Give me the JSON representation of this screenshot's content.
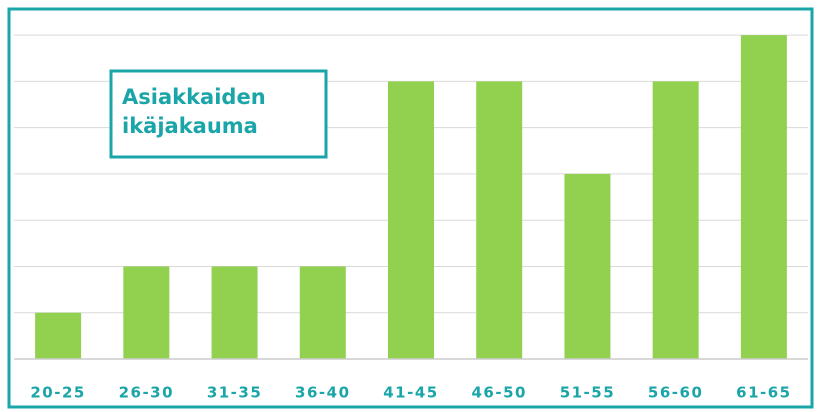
{
  "chart_data": {
    "type": "bar",
    "title": "Asiakkaiden ikäjakauma",
    "categories": [
      "20-25",
      "26-30",
      "31-35",
      "36-40",
      "41-45",
      "46-50",
      "51-55",
      "56-60",
      "61-65"
    ],
    "values": [
      1,
      2,
      2,
      2,
      6,
      6,
      4,
      6,
      7
    ],
    "color": "#92d050",
    "ylim": [
      0,
      7.5
    ],
    "yticks": [
      1,
      2,
      3,
      4,
      5,
      6,
      7
    ],
    "grid": true
  }
}
